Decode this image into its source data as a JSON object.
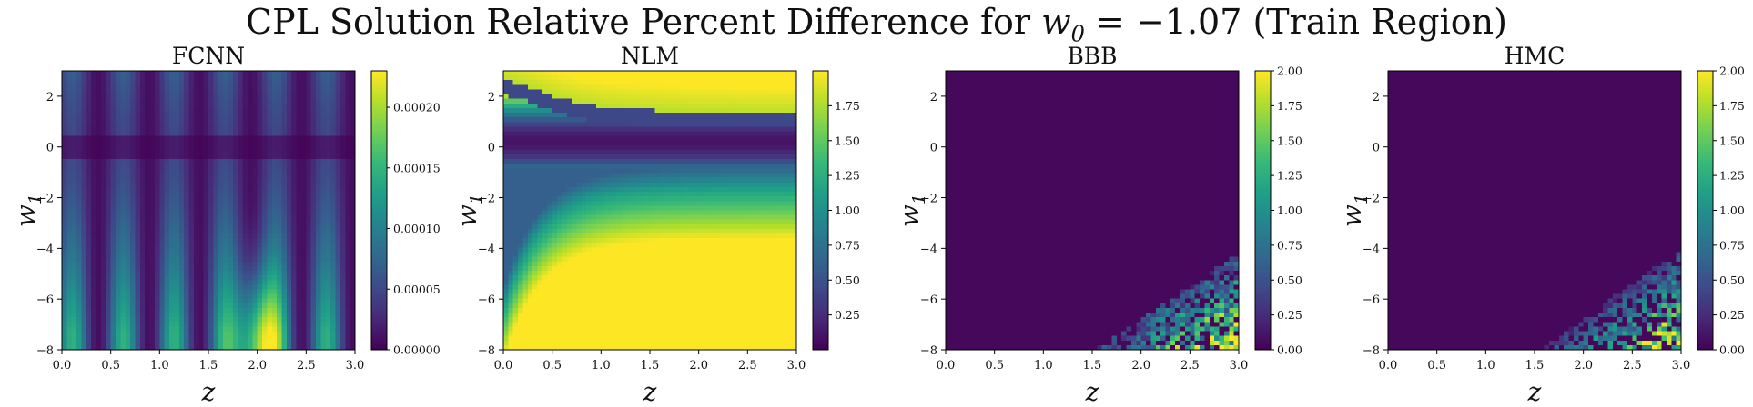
{
  "figure": {
    "title_prefix": "CPL Solution Relative Percent Difference for ",
    "title_math": "w",
    "title_math_sub": "0",
    "title_math_rest": " = −1.07",
    "title_suffix": " (Train Region)"
  },
  "colors": {
    "viridis": [
      "#440154",
      "#482878",
      "#3e4989",
      "#31688e",
      "#26828e",
      "#1f9e89",
      "#35b779",
      "#6ece58",
      "#b5de2b",
      "#fde725"
    ]
  },
  "chart_data": [
    {
      "type": "heatmap",
      "title": "FCNN",
      "xlabel": "z",
      "ylabel": "w",
      "ylabel_sub": "1",
      "xlim": [
        0.0,
        3.0
      ],
      "ylim": [
        -8,
        3
      ],
      "xticks": [
        "0.0",
        "0.5",
        "1.0",
        "1.5",
        "2.0",
        "2.5",
        "3.0"
      ],
      "yticks": [
        "2",
        "0",
        "−2",
        "−4",
        "−6",
        "−8"
      ],
      "ytick_values": [
        2,
        0,
        -2,
        -4,
        -6,
        -8
      ],
      "colorbar": {
        "min": 0,
        "max": 0.00023,
        "ticks": [
          "0.00000",
          "0.00005",
          "0.00010",
          "0.00015",
          "0.00020"
        ],
        "tick_values": [
          0,
          5e-05,
          0.0001,
          0.00015,
          0.0002
        ]
      },
      "pattern": "fcnn"
    },
    {
      "type": "heatmap",
      "title": "NLM",
      "xlabel": "z",
      "ylabel": "w",
      "ylabel_sub": "1",
      "xlim": [
        0.0,
        3.0
      ],
      "ylim": [
        -8,
        3
      ],
      "xticks": [
        "0.0",
        "0.5",
        "1.0",
        "1.5",
        "2.0",
        "2.5",
        "3.0"
      ],
      "yticks": [
        "2",
        "0",
        "−2",
        "−4",
        "−6",
        "−8"
      ],
      "ytick_values": [
        2,
        0,
        -2,
        -4,
        -6,
        -8
      ],
      "colorbar": {
        "min": 0,
        "max": 2.0,
        "ticks": [
          "0.25",
          "0.50",
          "0.75",
          "1.00",
          "1.25",
          "1.50",
          "1.75"
        ],
        "tick_values": [
          0.25,
          0.5,
          0.75,
          1.0,
          1.25,
          1.5,
          1.75
        ]
      },
      "pattern": "nlm"
    },
    {
      "type": "heatmap",
      "title": "BBB",
      "xlabel": "z",
      "ylabel": "w",
      "ylabel_sub": "1",
      "xlim": [
        0.0,
        3.0
      ],
      "ylim": [
        -8,
        3
      ],
      "xticks": [
        "0.0",
        "0.5",
        "1.0",
        "1.5",
        "2.0",
        "2.5",
        "3.0"
      ],
      "yticks": [
        "2",
        "0",
        "−2",
        "−4",
        "−6",
        "−8"
      ],
      "ytick_values": [
        2,
        0,
        -2,
        -4,
        -6,
        -8
      ],
      "colorbar": {
        "min": 0,
        "max": 2.0,
        "ticks": [
          "0.00",
          "0.25",
          "0.50",
          "0.75",
          "1.00",
          "1.25",
          "1.50",
          "1.75",
          "2.00"
        ],
        "tick_values": [
          0,
          0.25,
          0.5,
          0.75,
          1.0,
          1.25,
          1.5,
          1.75,
          2.0
        ]
      },
      "pattern": "bbb"
    },
    {
      "type": "heatmap",
      "title": "HMC",
      "xlabel": "z",
      "ylabel": "w",
      "ylabel_sub": "1",
      "xlim": [
        0.0,
        3.0
      ],
      "ylim": [
        -8,
        3
      ],
      "xticks": [
        "0.0",
        "0.5",
        "1.0",
        "1.5",
        "2.0",
        "2.5",
        "3.0"
      ],
      "yticks": [
        "2",
        "0",
        "−2",
        "−4",
        "−6",
        "−8"
      ],
      "ytick_values": [
        2,
        0,
        -2,
        -4,
        -6,
        -8
      ],
      "colorbar": {
        "min": 0,
        "max": 2.0,
        "ticks": [
          "0.00",
          "0.25",
          "0.50",
          "0.75",
          "1.00",
          "1.25",
          "1.50",
          "1.75",
          "2.00"
        ],
        "tick_values": [
          0,
          0.25,
          0.5,
          0.75,
          1.0,
          1.25,
          1.5,
          1.75,
          2.0
        ]
      },
      "pattern": "hmc"
    }
  ]
}
